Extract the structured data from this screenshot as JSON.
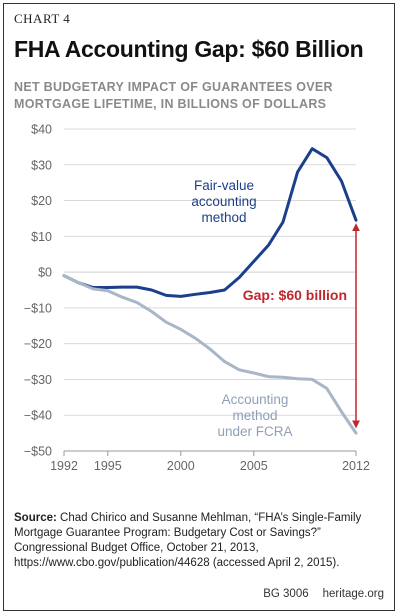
{
  "chart_label": "CHART 4",
  "title": "FHA Accounting Gap: $60 Billion",
  "subtitle": "NET BUDGETARY IMPACT OF GUARANTEES OVER MORTGAGE LIFETIME, IN BILLIONS OF DOLLARS",
  "source_label": "Source:",
  "source_text": "Chad Chirico and Susanne Mehlman, “FHA’s Single-Family Mortgage Guarantee Program: Budgetary Cost or Savings?” Congressional Budget Office, October 21, 2013, https://www.cbo.gov/publication/44628 (accessed April 2, 2015).",
  "footer": {
    "code": "BG 3006",
    "site": "heritage.org"
  },
  "colors": {
    "fair_value": "#1c3f8c",
    "fcra": "#a8b6c8",
    "gap": "#c0262d",
    "grid": "#d9d9d9",
    "axis_text": "#666666"
  },
  "chart_data": {
    "type": "line",
    "ylim": [
      -50,
      40
    ],
    "y_ticks": [
      40,
      30,
      20,
      10,
      0,
      -10,
      -20,
      -30,
      -40,
      -50
    ],
    "y_tick_labels": [
      "$40",
      "$30",
      "$20",
      "$10",
      "$0",
      "−$10",
      "−$20",
      "−$30",
      "−$40",
      "−$50"
    ],
    "xlim": [
      1992,
      2012
    ],
    "x_ticks": [
      1992,
      1995,
      2000,
      2005,
      2012
    ],
    "x_tick_labels": [
      "1992",
      "1995",
      "2000",
      "2005",
      "2012"
    ],
    "grid": true,
    "series": [
      {
        "name": "Fair-value accounting method",
        "label_lines": [
          "Fair-value",
          "accounting",
          "method"
        ],
        "x": [
          1992,
          1993,
          1994,
          1995,
          1996,
          1997,
          1998,
          1999,
          2000,
          2001,
          2002,
          2003,
          2004,
          2005,
          2006,
          2007,
          2008,
          2009,
          2010,
          2011,
          2012
        ],
        "y": [
          -1,
          -3,
          -4.3,
          -4.3,
          -4.2,
          -4.2,
          -5,
          -6.5,
          -6.8,
          -6.2,
          -5.7,
          -5,
          -1.5,
          3,
          7.5,
          14,
          28,
          34.5,
          32,
          25.5,
          14.5
        ]
      },
      {
        "name": "Accounting method under FCRA",
        "label_lines": [
          "Accounting",
          "method",
          "under FCRA"
        ],
        "x": [
          1992,
          1993,
          1994,
          1995,
          1996,
          1997,
          1998,
          1999,
          2000,
          2001,
          2002,
          2003,
          2004,
          2005,
          2006,
          2007,
          2008,
          2009,
          2010,
          2011,
          2012
        ],
        "y": [
          -1,
          -3,
          -4.7,
          -5.2,
          -7,
          -8.5,
          -11,
          -14,
          -16,
          -18.5,
          -21.5,
          -25,
          -27.3,
          -28.2,
          -29.2,
          -29.4,
          -29.8,
          -30,
          -32.5,
          -39,
          -45
        ]
      }
    ],
    "annotation": {
      "text": "Gap: $60 billion",
      "x": 2012,
      "y_from": 14.5,
      "y_to": -44.5
    }
  }
}
